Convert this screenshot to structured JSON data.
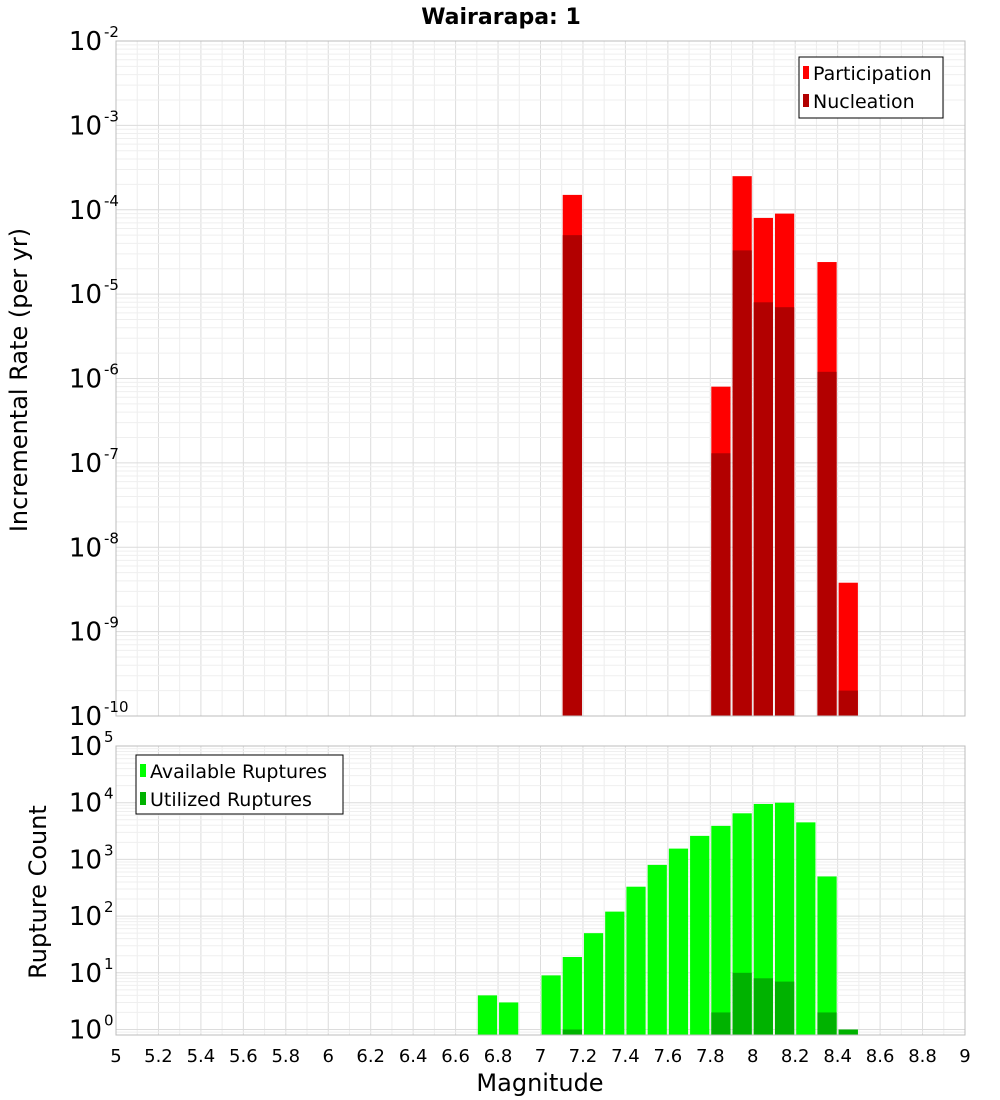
{
  "chart_data": [
    {
      "panel": "top",
      "type": "bar",
      "title": "Wairarapa: 1",
      "xlabel": "",
      "ylabel": "Incremental Rate (per yr)",
      "yscale": "log",
      "ylim": [
        1e-10,
        0.01
      ],
      "xlim": [
        5,
        9
      ],
      "bar_width": 0.1,
      "y_tick_labels": [
        {
          "base": "10",
          "exp": "-10",
          "value": 1e-10
        },
        {
          "base": "10",
          "exp": "-9",
          "value": 1e-09
        },
        {
          "base": "10",
          "exp": "-8",
          "value": 1e-08
        },
        {
          "base": "10",
          "exp": "-7",
          "value": 1e-07
        },
        {
          "base": "10",
          "exp": "-6",
          "value": 1e-06
        },
        {
          "base": "10",
          "exp": "-5",
          "value": 1e-05
        },
        {
          "base": "10",
          "exp": "-4",
          "value": 0.0001
        },
        {
          "base": "10",
          "exp": "-3",
          "value": 0.001
        },
        {
          "base": "10",
          "exp": "-2",
          "value": 0.01
        }
      ],
      "legend_position": "top-right",
      "grid": true,
      "series": [
        {
          "name": "Participation",
          "color": "#ff0000",
          "points": [
            {
              "x": 7.15,
              "y": 0.00015
            },
            {
              "x": 7.85,
              "y": 8e-07
            },
            {
              "x": 7.95,
              "y": 0.00025
            },
            {
              "x": 8.05,
              "y": 8e-05
            },
            {
              "x": 8.15,
              "y": 9e-05
            },
            {
              "x": 8.35,
              "y": 2.4e-05
            },
            {
              "x": 8.45,
              "y": 3.8e-09
            }
          ]
        },
        {
          "name": "Nucleation",
          "color": "#b20000",
          "points": [
            {
              "x": 7.15,
              "y": 5e-05
            },
            {
              "x": 7.85,
              "y": 1.3e-07
            },
            {
              "x": 7.95,
              "y": 3.3e-05
            },
            {
              "x": 8.05,
              "y": 8e-06
            },
            {
              "x": 8.15,
              "y": 7e-06
            },
            {
              "x": 8.35,
              "y": 1.2e-06
            },
            {
              "x": 8.45,
              "y": 2e-10
            }
          ]
        }
      ]
    },
    {
      "panel": "bottom",
      "type": "bar",
      "title": "",
      "xlabel": "Magnitude",
      "ylabel": "Rupture Count",
      "yscale": "log",
      "ylim": [
        0.8,
        100000
      ],
      "xlim": [
        5,
        9
      ],
      "bar_width": 0.1,
      "x_tick_labels": [
        "5",
        "5.2",
        "5.4",
        "5.6",
        "5.8",
        "6",
        "6.2",
        "6.4",
        "6.6",
        "6.8",
        "7",
        "7.2",
        "7.4",
        "7.6",
        "7.8",
        "8",
        "8.2",
        "8.4",
        "8.6",
        "8.8",
        "9"
      ],
      "y_tick_labels": [
        {
          "base": "10",
          "exp": "0",
          "value": 1
        },
        {
          "base": "10",
          "exp": "1",
          "value": 10
        },
        {
          "base": "10",
          "exp": "2",
          "value": 100
        },
        {
          "base": "10",
          "exp": "3",
          "value": 1000
        },
        {
          "base": "10",
          "exp": "4",
          "value": 10000
        },
        {
          "base": "10",
          "exp": "5",
          "value": 100000
        }
      ],
      "legend_position": "top-left",
      "grid": true,
      "series": [
        {
          "name": "Available Ruptures",
          "color": "#00ff00",
          "points": [
            {
              "x": 6.75,
              "y": 4
            },
            {
              "x": 6.85,
              "y": 3
            },
            {
              "x": 7.05,
              "y": 9
            },
            {
              "x": 7.15,
              "y": 19
            },
            {
              "x": 7.25,
              "y": 50
            },
            {
              "x": 7.35,
              "y": 120
            },
            {
              "x": 7.45,
              "y": 330
            },
            {
              "x": 7.55,
              "y": 800
            },
            {
              "x": 7.65,
              "y": 1550
            },
            {
              "x": 7.75,
              "y": 2600
            },
            {
              "x": 7.85,
              "y": 3900
            },
            {
              "x": 7.95,
              "y": 6500
            },
            {
              "x": 8.05,
              "y": 9500
            },
            {
              "x": 8.15,
              "y": 10000
            },
            {
              "x": 8.25,
              "y": 4500
            },
            {
              "x": 8.35,
              "y": 500
            },
            {
              "x": 8.45,
              "y": 1
            }
          ]
        },
        {
          "name": "Utilized Ruptures",
          "color": "#00b200",
          "points": [
            {
              "x": 7.15,
              "y": 1
            },
            {
              "x": 7.85,
              "y": 2
            },
            {
              "x": 7.95,
              "y": 10
            },
            {
              "x": 8.05,
              "y": 8
            },
            {
              "x": 8.15,
              "y": 7
            },
            {
              "x": 8.35,
              "y": 2
            },
            {
              "x": 8.45,
              "y": 1
            }
          ]
        }
      ]
    }
  ]
}
